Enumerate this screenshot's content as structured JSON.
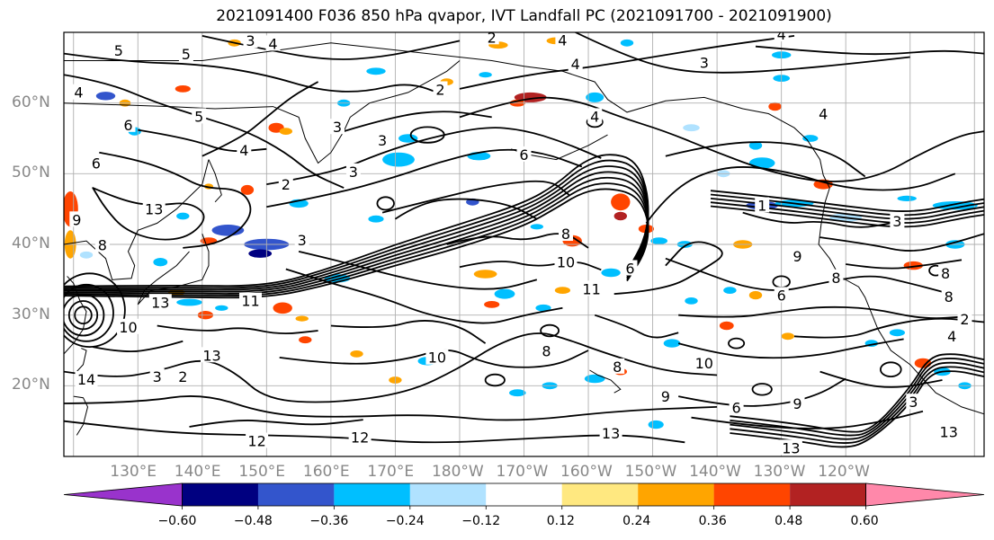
{
  "title": "2021091400 F036 850 hPa qvapor, IVT Landfall PC (2021091700 - 2021091900)",
  "map": {
    "lat_labels": [
      "60°N",
      "50°N",
      "40°N",
      "30°N",
      "20°N"
    ],
    "lon_labels": [
      "130°E",
      "140°E",
      "150°E",
      "160°E",
      "170°E",
      "180°W",
      "170°W",
      "160°W",
      "150°W",
      "140°W",
      "130°W",
      "120°W"
    ],
    "contour_labels": [
      {
        "text": "3",
        "lon": 147.5,
        "lat": 68.7
      },
      {
        "text": "4",
        "lon": 151,
        "lat": 68.3
      },
      {
        "text": "2",
        "lon": 185,
        "lat": 69.2
      },
      {
        "text": "4",
        "lon": 196,
        "lat": 68.8
      },
      {
        "text": "4",
        "lon": 230,
        "lat": 69.6
      },
      {
        "text": "5",
        "lon": 127,
        "lat": 67.3
      },
      {
        "text": "5",
        "lon": 137.5,
        "lat": 66.8
      },
      {
        "text": "4",
        "lon": 198,
        "lat": 65.4
      },
      {
        "text": "3",
        "lon": 218,
        "lat": 65.6
      },
      {
        "text": "4",
        "lon": 120.8,
        "lat": 61.4
      },
      {
        "text": "2",
        "lon": 177,
        "lat": 61.8
      },
      {
        "text": "5",
        "lon": 139.5,
        "lat": 58
      },
      {
        "text": "6",
        "lon": 128.5,
        "lat": 56.8
      },
      {
        "text": "3",
        "lon": 161,
        "lat": 56.5
      },
      {
        "text": "4",
        "lon": 201,
        "lat": 58
      },
      {
        "text": "4",
        "lon": 236.5,
        "lat": 58.4
      },
      {
        "text": "4",
        "lon": 146.5,
        "lat": 53.2
      },
      {
        "text": "3",
        "lon": 168,
        "lat": 54.6
      },
      {
        "text": "6",
        "lon": 123.5,
        "lat": 51.4
      },
      {
        "text": "3",
        "lon": 163.5,
        "lat": 50.2
      },
      {
        "text": "6",
        "lon": 190,
        "lat": 52.6
      },
      {
        "text": "2",
        "lon": 153,
        "lat": 48.4
      },
      {
        "text": "13",
        "lon": 132.5,
        "lat": 44.9
      },
      {
        "text": "1",
        "lon": 227,
        "lat": 45.4
      },
      {
        "text": "9",
        "lon": 120.5,
        "lat": 43.4
      },
      {
        "text": "3",
        "lon": 248,
        "lat": 43.2
      },
      {
        "text": "8",
        "lon": 124.5,
        "lat": 39.8
      },
      {
        "text": "3",
        "lon": 155.5,
        "lat": 40.5
      },
      {
        "text": "8",
        "lon": 196.5,
        "lat": 41.4
      },
      {
        "text": "10",
        "lon": 196.5,
        "lat": 37.4
      },
      {
        "text": "9",
        "lon": 232.5,
        "lat": 38.2
      },
      {
        "text": "8",
        "lon": 238.5,
        "lat": 35.2
      },
      {
        "text": "6",
        "lon": 230,
        "lat": 32.7
      },
      {
        "text": "11",
        "lon": 200.5,
        "lat": 33.6
      },
      {
        "text": "6",
        "lon": 206.5,
        "lat": 36.5
      },
      {
        "text": "8",
        "lon": 255.5,
        "lat": 35.8
      },
      {
        "text": "8",
        "lon": 256,
        "lat": 32.5
      },
      {
        "text": "11",
        "lon": 147.5,
        "lat": 31.9
      },
      {
        "text": "13",
        "lon": 133.5,
        "lat": 31.7
      },
      {
        "text": "2",
        "lon": 258.5,
        "lat": 29.3
      },
      {
        "text": "10",
        "lon": 128.5,
        "lat": 28.2
      },
      {
        "text": "4",
        "lon": 256.5,
        "lat": 26.9
      },
      {
        "text": "10",
        "lon": 176.5,
        "lat": 23.9
      },
      {
        "text": "8",
        "lon": 193.5,
        "lat": 24.8
      },
      {
        "text": "8",
        "lon": 204.5,
        "lat": 22.6
      },
      {
        "text": "13",
        "lon": 141.5,
        "lat": 24.2
      },
      {
        "text": "3",
        "lon": 133,
        "lat": 21.2
      },
      {
        "text": "2",
        "lon": 137,
        "lat": 21.2
      },
      {
        "text": "14",
        "lon": 122,
        "lat": 20.8
      },
      {
        "text": "10",
        "lon": 218,
        "lat": 23.1
      },
      {
        "text": "9",
        "lon": 212,
        "lat": 18.4
      },
      {
        "text": "9",
        "lon": 232.5,
        "lat": 17.4
      },
      {
        "text": "6",
        "lon": 223,
        "lat": 16.8
      },
      {
        "text": "3",
        "lon": 250.5,
        "lat": 17.6
      },
      {
        "text": "12",
        "lon": 148.5,
        "lat": 12.1
      },
      {
        "text": "12",
        "lon": 164.5,
        "lat": 12.6
      },
      {
        "text": "13",
        "lon": 203.5,
        "lat": 13.2
      },
      {
        "text": "13",
        "lon": 231.5,
        "lat": 11.1
      },
      {
        "text": "13",
        "lon": 256,
        "lat": 13.4
      }
    ]
  },
  "colorbar": {
    "ticks": [
      "−0.60",
      "−0.48",
      "−0.36",
      "−0.24",
      "−0.12",
      "0.12",
      "0.24",
      "0.36",
      "0.48",
      "0.60"
    ],
    "colors": [
      "#9933cc",
      "#000080",
      "#3355cc",
      "#00bfff",
      "#b0e2ff",
      "#ffffff",
      "#ffe880",
      "#ffa500",
      "#ff4500",
      "#b22222",
      "#ff88aa"
    ]
  }
}
